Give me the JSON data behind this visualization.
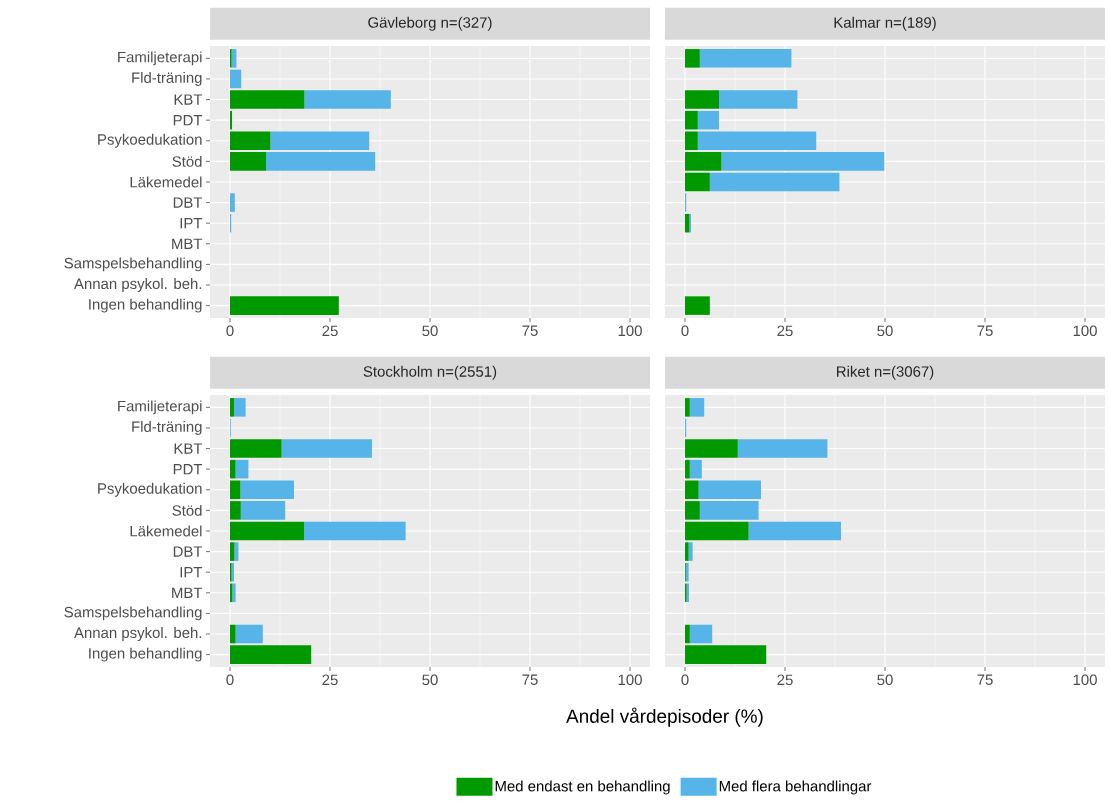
{
  "chart_data": [
    {
      "type": "bar",
      "orientation": "horizontal",
      "stacked": true,
      "title": "Gävleborg n=(327)",
      "categories": [
        "Familjeterapi",
        "Fld-träning",
        "KBT",
        "PDT",
        "Psykoedukation",
        "Stöd",
        "Läkemedel",
        "DBT",
        "IPT",
        "MBT",
        "Samspelsbehandling",
        "Annan psykol. beh.",
        "Ingen behandling"
      ],
      "xlim": [
        -5,
        105
      ],
      "xticks": [
        0,
        25,
        50,
        75,
        100
      ],
      "grid": true,
      "series": [
        {
          "color": "#009900",
          "values": [
            0.4,
            0,
            18.6,
            0.5,
            10.1,
            9.0,
            0,
            0,
            0,
            0,
            0,
            0,
            27.2
          ]
        },
        {
          "color": "#56b4e9",
          "values": [
            1.2,
            2.8,
            21.6,
            0,
            24.7,
            27.3,
            0,
            1.2,
            0.3,
            0,
            0,
            0,
            0
          ]
        }
      ]
    },
    {
      "type": "bar",
      "orientation": "horizontal",
      "stacked": true,
      "title": "Kalmar n=(189)",
      "categories": [
        null,
        null,
        null,
        null,
        null,
        null,
        null,
        null,
        null,
        null,
        null,
        null,
        null
      ],
      "xlim": [
        -5,
        105
      ],
      "xticks": [
        0,
        25,
        50,
        75,
        100
      ],
      "grid": true,
      "tick_labels": "x",
      "series": [
        {
          "color": "#009900",
          "values": [
            3.7,
            0,
            8.5,
            3.2,
            3.2,
            9.1,
            6.2,
            0,
            1.1,
            0,
            0,
            0,
            6.2
          ]
        },
        {
          "color": "#56b4e9",
          "values": [
            22.9,
            0,
            19.6,
            5.3,
            29.6,
            40.7,
            32.4,
            0.3,
            0.4,
            0,
            0,
            0,
            0
          ]
        }
      ]
    },
    {
      "type": "bar",
      "orientation": "horizontal",
      "stacked": true,
      "title": "Stockholm n=(2551)",
      "xlabel": "Andel vårdepisoder (%)",
      "legend": "bottom",
      "categories": [
        "Familjeterapi",
        "Fld-träning",
        "KBT",
        "PDT",
        "Psykoedukation",
        "Stöd",
        "Läkemedel",
        "DBT",
        "IPT",
        "MBT",
        "Samspelsbehandling",
        "Annan psykol. beh.",
        "Ingen behandling"
      ],
      "xlim": [
        -5,
        105
      ],
      "xticks": [
        0,
        25,
        50,
        75,
        100
      ],
      "grid": true,
      "series": [
        {
          "name": "Med endast en behandling",
          "color": "#009900",
          "values": [
            1.0,
            0,
            12.9,
            1.4,
            2.6,
            2.7,
            18.5,
            1.1,
            0.4,
            0.6,
            0,
            1.4,
            20.3
          ]
        },
        {
          "name": "Med flera behandlingar",
          "color": "#56b4e9",
          "values": [
            2.9,
            0.2,
            22.6,
            3.2,
            13.4,
            11.1,
            25.4,
            1.0,
            0.6,
            0.8,
            0,
            6.8,
            0
          ]
        }
      ]
    },
    {
      "type": "bar",
      "orientation": "horizontal",
      "stacked": true,
      "title": "Riket n=(3067)",
      "categories": [
        null,
        null,
        null,
        null,
        null,
        null,
        null,
        null,
        null,
        null,
        null,
        null,
        null
      ],
      "xlim": [
        -5,
        105
      ],
      "xticks": [
        0,
        25,
        50,
        75,
        100
      ],
      "grid": true,
      "tick_labels": "x",
      "series": [
        {
          "color": "#009900",
          "values": [
            1.2,
            0,
            13.2,
            1.2,
            3.4,
            3.7,
            15.9,
            0.9,
            0.2,
            0.4,
            0,
            1.2,
            20.3
          ]
        },
        {
          "color": "#56b4e9",
          "values": [
            3.6,
            0.3,
            22.4,
            3.0,
            15.6,
            14.7,
            23.1,
            1.0,
            0.7,
            0.6,
            0,
            5.6,
            0
          ]
        }
      ]
    }
  ]
}
